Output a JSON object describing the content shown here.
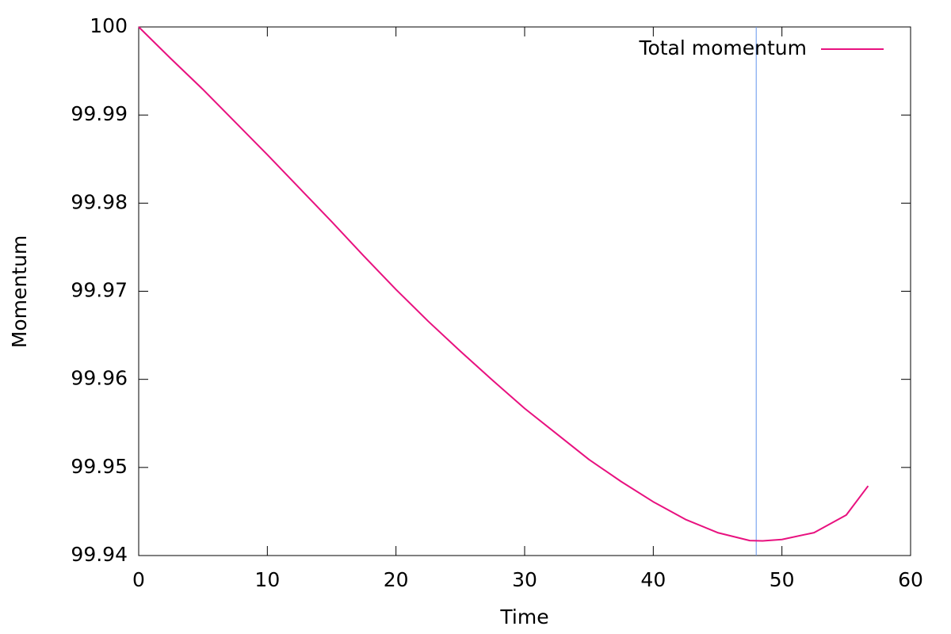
{
  "chart_data": {
    "type": "line",
    "x_label": "Time",
    "y_label": "Momentum",
    "x": [
      0,
      2.5,
      5,
      7.5,
      10,
      12.5,
      15,
      17.5,
      20,
      22.5,
      25,
      27.5,
      30,
      32.5,
      35,
      37.5,
      40,
      42.5,
      45,
      47.5,
      48.5,
      50,
      52.5,
      55,
      56.7
    ],
    "series": [
      {
        "name": "Total momentum",
        "color": "#e8117f",
        "values": [
          100,
          99.9964,
          99.9929,
          99.9892,
          99.9855,
          99.9817,
          99.9779,
          99.974,
          99.9702,
          99.9666,
          99.9632,
          99.9599,
          99.9567,
          99.9538,
          99.9509,
          99.9484,
          99.9461,
          99.9441,
          99.9426,
          99.9417,
          99.94166,
          99.94182,
          99.9426,
          99.9446,
          99.9479
        ]
      }
    ],
    "xlim": [
      0,
      60
    ],
    "xticks": [
      0,
      10,
      20,
      30,
      40,
      50,
      60
    ],
    "ylim": [
      99.94,
      100
    ],
    "yticks": [
      99.94,
      99.95,
      99.96,
      99.97,
      99.98,
      99.99,
      100
    ],
    "marker_x": 48,
    "marker_color": "#6495ed",
    "legend": "top-right",
    "grid": false
  }
}
